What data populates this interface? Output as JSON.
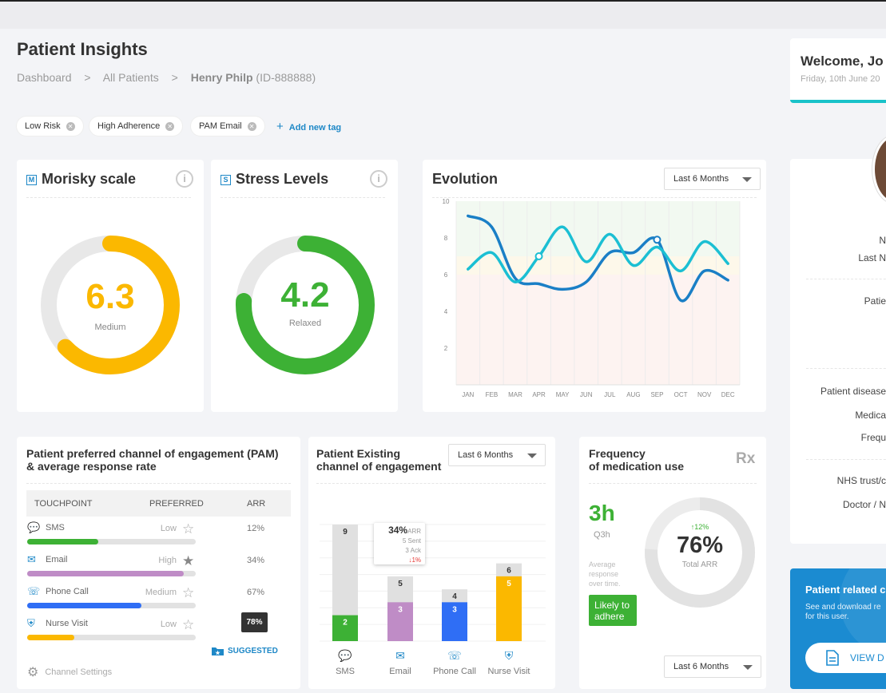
{
  "header": {
    "title": "Patient Insights",
    "breadcrumb": [
      "Dashboard",
      "All Patients"
    ],
    "breadcrumb_sep": ">",
    "patient_name": "Henry Philp",
    "patient_id": "(ID-888888)"
  },
  "tags": [
    "Low Risk",
    "High Adherence",
    "PAM Email"
  ],
  "add_tag_label": "Add new tag",
  "welcome": {
    "title": "Welcome, Jo",
    "date": "Friday, 10th June 20"
  },
  "morisky": {
    "icon_letter": "M",
    "title": "Morisky scale",
    "value": "6.3",
    "label": "Medium",
    "fraction": 0.63,
    "color": "#fbb800"
  },
  "stress": {
    "icon_letter": "S",
    "title": "Stress Levels",
    "value": "4.2",
    "label": "Relaxed",
    "fraction": 0.76,
    "color": "#3db135"
  },
  "evolution": {
    "title": "Evolution",
    "dropdown": "Last 6 Months",
    "chart_data": {
      "type": "line",
      "x": [
        "JAN",
        "FEB",
        "MAR",
        "APR",
        "MAY",
        "JUN",
        "JUL",
        "AUG",
        "SEP",
        "OCT",
        "NOV",
        "DEC"
      ],
      "yticks": [
        2,
        4,
        6,
        8,
        10
      ],
      "ylim": [
        0,
        10
      ],
      "series": [
        {
          "color": "#1a7fc6",
          "values": [
            9.2,
            8.6,
            5.8,
            5.5,
            5.2,
            5.6,
            7.2,
            7.2,
            7.9,
            4.6,
            6.2,
            5.7
          ]
        },
        {
          "color": "#1bbfd3",
          "values": [
            6.3,
            7.2,
            5.6,
            7.0,
            8.6,
            6.7,
            8.2,
            6.5,
            7.5,
            6.2,
            7.8,
            6.6
          ]
        }
      ]
    }
  },
  "pam": {
    "title_line1": "Patient preferred channel of engagement (PAM)",
    "title_line2": "& average response rate",
    "headers": [
      "TOUCHPOINT",
      "PREFERRED",
      "ARR"
    ],
    "rows": [
      {
        "label": "SMS",
        "preferred": "Low",
        "arr": "12%",
        "fill": 0.42,
        "color": "#3db135",
        "filled_star": false
      },
      {
        "label": "Email",
        "preferred": "High",
        "arr": "34%",
        "fill": 0.93,
        "color": "#bf8cc6",
        "filled_star": true
      },
      {
        "label": "Phone Call",
        "preferred": "Medium",
        "arr": "67%",
        "fill": 0.68,
        "color": "#2f6ef5",
        "filled_star": "half"
      },
      {
        "label": "Nurse Visit",
        "preferred": "Low",
        "arr": "78%",
        "fill": 0.28,
        "color": "#fbb800",
        "filled_star": false
      }
    ],
    "suggested_label": "SUGGESTED",
    "settings_label": "Channel Settings"
  },
  "existing": {
    "title_line1": "Patient Existing",
    "title_line2": "channel of engagement",
    "dropdown": "Last 6 Months",
    "tooltip": {
      "pct": "34%",
      "arr": "ARR",
      "sent": "5 Sent",
      "ack": "3 Ack",
      "delta": "1%"
    },
    "chart_data": {
      "type": "bar",
      "categories": [
        "SMS",
        "Email",
        "Phone Call",
        "Nurse Visit"
      ],
      "series": [
        {
          "values": [
            2,
            3,
            3,
            5
          ],
          "colors": [
            "#3db135",
            "#bf8cc6",
            "#2f6ef5",
            "#fbb800"
          ]
        },
        {
          "values": [
            9,
            5,
            4,
            6
          ],
          "color": "#e0e0e0"
        }
      ]
    }
  },
  "frequency": {
    "title_line1": "Frequency",
    "title_line2": "of medication use",
    "rx": "Rx",
    "value": "3h",
    "sub": "Q3h",
    "avg_text": [
      "Average",
      "response",
      "over time."
    ],
    "badge": [
      "Likely to",
      "adhere"
    ],
    "percent": "76%",
    "delta": "12%",
    "total_label": "Total ARR",
    "fraction": 0.76,
    "dropdown": "Last 6 Months"
  },
  "profile": {
    "labels": [
      "N",
      "Last N",
      "Patie",
      "Patient disease",
      "Medica",
      "Frequ",
      "NHS trust/c",
      "Doctor / N"
    ]
  },
  "related": {
    "title": "Patient related c",
    "desc1": "See and download re",
    "desc2": "for this user.",
    "button": "VIEW D"
  }
}
